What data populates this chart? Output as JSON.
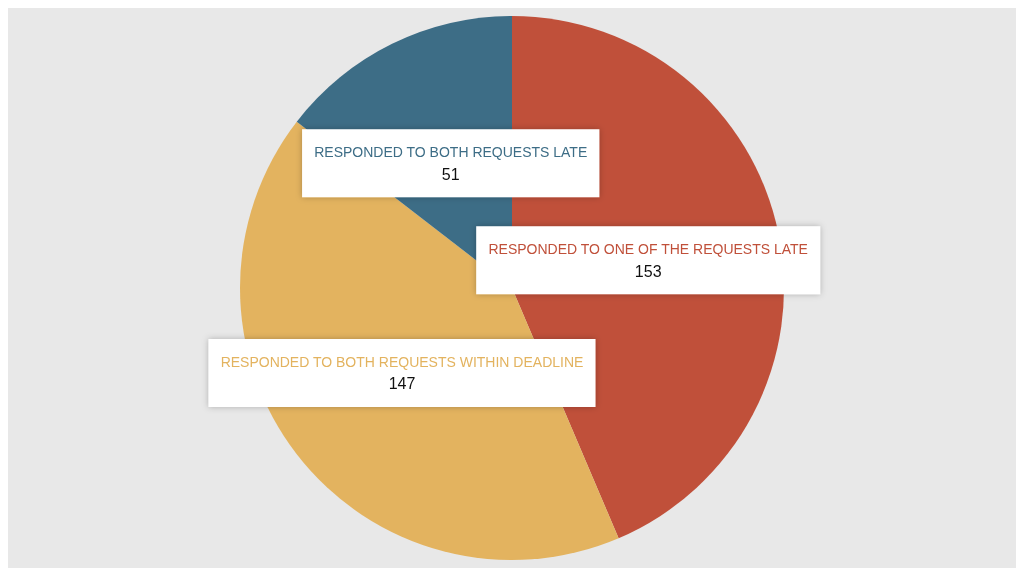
{
  "chart_data": {
    "type": "pie",
    "categories": [
      "RESPONDED TO ONE OF THE REQUESTS LATE",
      "RESPONDED TO BOTH REQUESTS WITHIN DEADLINE",
      "RESPONDED TO BOTH REQUESTS LATE"
    ],
    "values": [
      153,
      147,
      51
    ],
    "colors": [
      "#c0503a",
      "#e3b35f",
      "#3d6d86"
    ],
    "data_labels": true
  }
}
